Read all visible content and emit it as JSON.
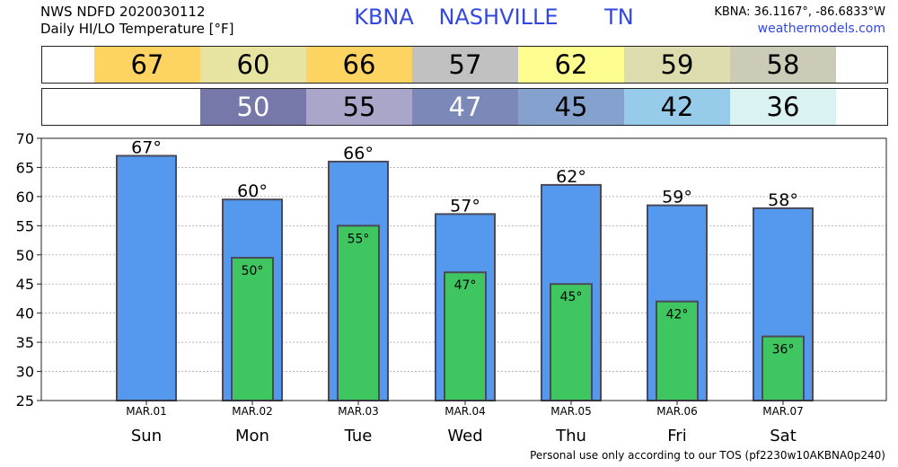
{
  "header": {
    "source_line": "NWS NDFD 2020030112",
    "subtitle": "Daily HI/LO Temperature [°F]",
    "station_code": "KBNA",
    "station_name": "NASHVILLE",
    "state": "TN",
    "coords": "KBNA: 36.1167°, -86.6833°W",
    "site": "weathermodels.com"
  },
  "hi_strip": [
    {
      "value": "67",
      "color": "#fdd361",
      "text_color": "#000000"
    },
    {
      "value": "60",
      "color": "#e7e4a2",
      "text_color": "#000000"
    },
    {
      "value": "66",
      "color": "#fdd361",
      "text_color": "#000000"
    },
    {
      "value": "57",
      "color": "#c1c1c1",
      "text_color": "#000000"
    },
    {
      "value": "62",
      "color": "#fdfc8e",
      "text_color": "#000000"
    },
    {
      "value": "59",
      "color": "#dcdcaf",
      "text_color": "#000000"
    },
    {
      "value": "58",
      "color": "#cbcbb8",
      "text_color": "#000000"
    }
  ],
  "lo_strip": [
    {
      "value": "50",
      "color": "#7578a9",
      "text_color": "#ffffff"
    },
    {
      "value": "55",
      "color": "#a9a6c9",
      "text_color": "#000000"
    },
    {
      "value": "47",
      "color": "#7b88b8",
      "text_color": "#ffffff"
    },
    {
      "value": "45",
      "color": "#84a2cd",
      "text_color": "#000000"
    },
    {
      "value": "42",
      "color": "#96cbea",
      "text_color": "#000000"
    },
    {
      "value": "36",
      "color": "#dbf2f2",
      "text_color": "#000000"
    }
  ],
  "colors": {
    "hi_bar": "#5599ee",
    "lo_bar": "#3fc660",
    "bar_stroke": "#4a4a5a"
  },
  "chart_data": {
    "type": "bar",
    "title": "",
    "xlabel": "",
    "ylabel": "",
    "ylim": [
      25,
      70
    ],
    "yticks": [
      25,
      30,
      35,
      40,
      45,
      50,
      55,
      60,
      65,
      70
    ],
    "grid": true,
    "dates": [
      "MAR.01",
      "MAR.02",
      "MAR.03",
      "MAR.04",
      "MAR.05",
      "MAR.06",
      "MAR.07"
    ],
    "days": [
      "Sun",
      "Mon",
      "Tue",
      "Wed",
      "Thu",
      "Fri",
      "Sat"
    ],
    "series": [
      {
        "values": [
          67,
          59.5,
          66,
          57,
          62,
          58.5,
          58
        ]
      },
      {
        "values": [
          null,
          49.5,
          55,
          47,
          45,
          42,
          36
        ]
      }
    ],
    "labels_hi": [
      "67°",
      "60°",
      "66°",
      "57°",
      "62°",
      "59°",
      "58°"
    ],
    "labels_lo": [
      "",
      "50°",
      "55°",
      "47°",
      "45°",
      "42°",
      "36°"
    ]
  },
  "footer": "Personal use only according to our TOS (pf2230w10AKBNA0p240)"
}
